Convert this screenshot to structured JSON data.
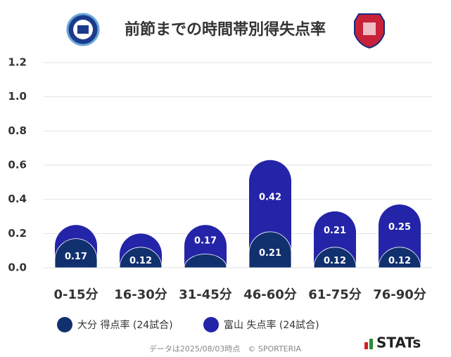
{
  "chart_data": {
    "type": "stacked-bar",
    "title": "前節までの時間帯別得失点率",
    "categories": [
      "0-15分",
      "16-30分",
      "31-45分",
      "46-60分",
      "61-75分",
      "76-90分"
    ],
    "series": [
      {
        "name": "大分 得点率 (24試合)",
        "color": "#11306e",
        "values": [
          0.17,
          0.12,
          0.08,
          0.21,
          0.12,
          0.12
        ]
      },
      {
        "name": "富山 失点率 (24試合)",
        "color": "#2424a8",
        "values": [
          0.08,
          0.08,
          0.17,
          0.42,
          0.21,
          0.25
        ]
      }
    ],
    "ylim": [
      0,
      1.2
    ],
    "yticks": [
      {
        "value": 0,
        "label": "0.0"
      },
      0.2,
      0.4,
      0.6,
      0.8,
      {
        "value": 1,
        "label": "1.0"
      },
      1.2
    ],
    "grid": true,
    "footnote": "データは2025/08/03時点　© SPORTERIA",
    "brand": "STATs"
  }
}
